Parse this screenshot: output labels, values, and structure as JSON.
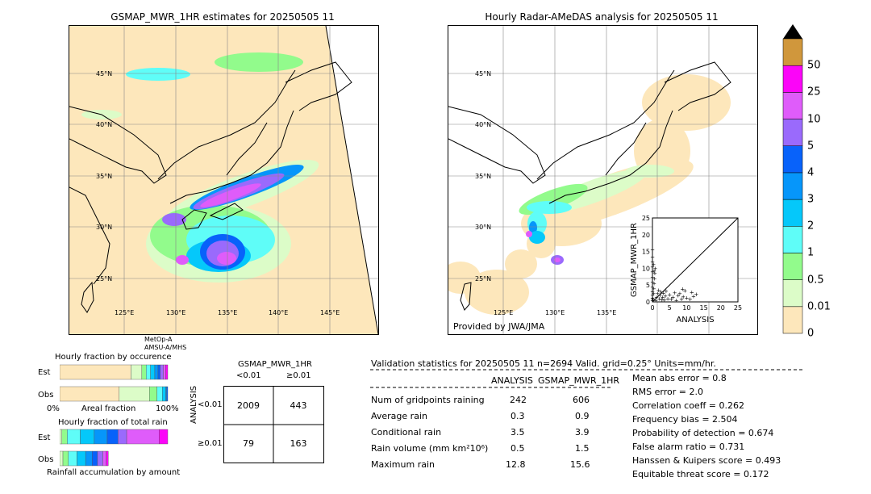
{
  "left_map": {
    "title": "GSMAP_MWR_1HR estimates for 20250505 11",
    "lat_labels": [
      "45°N",
      "40°N",
      "35°N",
      "30°N",
      "25°N"
    ],
    "lon_labels": [
      "125°E",
      "130°E",
      "135°E",
      "140°E",
      "145°E"
    ],
    "satellite_note": [
      "MetOp-A",
      "AMSU-A/MHS"
    ]
  },
  "right_map": {
    "title": "Hourly Radar-AMeDAS analysis for 20250505 11",
    "lat_labels": [
      "45°N",
      "40°N",
      "35°N",
      "30°N",
      "25°N"
    ],
    "lon_labels": [
      "125°E",
      "130°E",
      "135°E"
    ],
    "credit": "Provided by JWA/JMA"
  },
  "colorbar": {
    "levels": [
      "0",
      "0.01",
      "0.5",
      "1",
      "2",
      "3",
      "4",
      "5",
      "10",
      "25",
      "50"
    ],
    "colors": [
      "#fde7bb",
      "#dcfcc8",
      "#92fb8c",
      "#5ffdf8",
      "#05c8fa",
      "#0696fa",
      "#0862fa",
      "#9a6afc",
      "#df5cfa",
      "#fb05f8",
      "#d0973c"
    ],
    "extend_color": "#000000"
  },
  "chart_data": [
    {
      "type": "scatter",
      "title": "",
      "xlabel": "ANALYSIS",
      "ylabel": "GSMAP_MWR_1HR",
      "xlim": [
        0,
        25
      ],
      "ylim": [
        0,
        25
      ],
      "xticks": [
        "0",
        "5",
        "10",
        "15",
        "20",
        "25"
      ],
      "yticks": [
        "0",
        "5",
        "10",
        "15",
        "20",
        "25"
      ],
      "diagonal": true,
      "points": [
        [
          0.0,
          0.5
        ],
        [
          0.0,
          1.2
        ],
        [
          0.0,
          2.0
        ],
        [
          0.0,
          3.1
        ],
        [
          0.0,
          4.5
        ],
        [
          0.0,
          6.0
        ],
        [
          0.0,
          7.5
        ],
        [
          0.0,
          9.0
        ],
        [
          0.0,
          10.5
        ],
        [
          0.0,
          12.0
        ],
        [
          0.0,
          13.5
        ],
        [
          0.0,
          15.6
        ],
        [
          0.2,
          0.8
        ],
        [
          0.3,
          2.5
        ],
        [
          0.4,
          4.0
        ],
        [
          0.5,
          5.5
        ],
        [
          0.6,
          7.0
        ],
        [
          0.7,
          8.5
        ],
        [
          0.8,
          10.0
        ],
        [
          0.3,
          11.2
        ],
        [
          0.5,
          9.3
        ],
        [
          1.0,
          0.5
        ],
        [
          1.2,
          1.5
        ],
        [
          1.5,
          2.5
        ],
        [
          1.8,
          3.5
        ],
        [
          2.0,
          1.0
        ],
        [
          2.2,
          2.0
        ],
        [
          2.5,
          3.0
        ],
        [
          2.8,
          0.7
        ],
        [
          3.0,
          1.5
        ],
        [
          3.2,
          2.6
        ],
        [
          3.5,
          0.6
        ],
        [
          3.8,
          1.8
        ],
        [
          4.0,
          3.2
        ],
        [
          4.5,
          1.0
        ],
        [
          5.0,
          2.2
        ],
        [
          5.5,
          0.9
        ],
        [
          6.0,
          1.4
        ],
        [
          6.5,
          2.8
        ],
        [
          7.0,
          0.5
        ],
        [
          7.5,
          1.9
        ],
        [
          8.0,
          2.5
        ],
        [
          8.5,
          0.8
        ],
        [
          9.0,
          1.6
        ],
        [
          9.5,
          3.4
        ],
        [
          10.0,
          1.2
        ],
        [
          11.0,
          0.9
        ],
        [
          12.0,
          1.7
        ],
        [
          12.8,
          2.3
        ],
        [
          11.5,
          2.9
        ],
        [
          8.8,
          3.9
        ]
      ]
    },
    {
      "type": "bar",
      "title": "Hourly fraction by occurence",
      "categories": [
        "Est",
        "Obs"
      ],
      "xlabel": "Areal fraction",
      "xticks": [
        "0%",
        "100%"
      ],
      "series": [
        {
          "name": "Est",
          "segments": [
            {
              "color": "#fde7bb",
              "value": 0.66
            },
            {
              "color": "#dcfcc8",
              "value": 0.1
            },
            {
              "color": "#92fb8c",
              "value": 0.04
            },
            {
              "color": "#5ffdf8",
              "value": 0.04
            },
            {
              "color": "#05c8fa",
              "value": 0.04
            },
            {
              "color": "#0696fa",
              "value": 0.03
            },
            {
              "color": "#0862fa",
              "value": 0.02
            },
            {
              "color": "#9a6afc",
              "value": 0.03
            },
            {
              "color": "#df5cfa",
              "value": 0.02
            },
            {
              "color": "#fb05f8",
              "value": 0.02
            }
          ]
        },
        {
          "name": "Obs",
          "segments": [
            {
              "color": "#fde7bb",
              "value": 0.55
            },
            {
              "color": "#dcfcc8",
              "value": 0.28
            },
            {
              "color": "#92fb8c",
              "value": 0.07
            },
            {
              "color": "#5ffdf8",
              "value": 0.05
            },
            {
              "color": "#05c8fa",
              "value": 0.03
            },
            {
              "color": "#0696fa",
              "value": 0.01
            },
            {
              "color": "#0862fa",
              "value": 0.01
            }
          ]
        }
      ]
    },
    {
      "type": "bar",
      "title": "Hourly fraction of total rain",
      "categories": [
        "Est",
        "Obs"
      ],
      "xlabel": "Rainfall accumulation by amount",
      "series": [
        {
          "name": "Est",
          "segments": [
            {
              "color": "#dcfcc8",
              "value": 0.02
            },
            {
              "color": "#92fb8c",
              "value": 0.05
            },
            {
              "color": "#5ffdf8",
              "value": 0.12
            },
            {
              "color": "#05c8fa",
              "value": 0.13
            },
            {
              "color": "#0696fa",
              "value": 0.12
            },
            {
              "color": "#0862fa",
              "value": 0.1
            },
            {
              "color": "#9a6afc",
              "value": 0.08
            },
            {
              "color": "#df5cfa",
              "value": 0.3
            },
            {
              "color": "#fb05f8",
              "value": 0.08
            }
          ]
        },
        {
          "name": "Obs",
          "segments": [
            {
              "color": "#dcfcc8",
              "value": 0.03
            },
            {
              "color": "#92fb8c",
              "value": 0.05
            },
            {
              "color": "#5ffdf8",
              "value": 0.08
            },
            {
              "color": "#05c8fa",
              "value": 0.08
            },
            {
              "color": "#0696fa",
              "value": 0.06
            },
            {
              "color": "#0862fa",
              "value": 0.05
            },
            {
              "color": "#9a6afc",
              "value": 0.05
            },
            {
              "color": "#df5cfa",
              "value": 0.03
            },
            {
              "color": "#fb05f8",
              "value": 0.02
            }
          ]
        }
      ]
    },
    {
      "type": "table",
      "title": "GSMAP_MWR_1HR",
      "col_headers": [
        "<0.01",
        "≥0.01"
      ],
      "row_title": "ANALYSIS",
      "row_headers": [
        "<0.01",
        "≥0.01"
      ],
      "cells": [
        [
          "2009",
          "443"
        ],
        [
          "79",
          "163"
        ]
      ]
    }
  ],
  "validation": {
    "header": "Validation statistics for 20250505 11  n=2694 Valid. grid=0.25° Units=mm/hr.",
    "col_analysis": "ANALYSIS",
    "col_gsmap": "GSMAP_MWR_1HR",
    "rows": [
      {
        "label": "Num of gridpoints raining",
        "analysis": "242",
        "gsmap": "606"
      },
      {
        "label": "Average rain",
        "analysis": "0.3",
        "gsmap": "0.9"
      },
      {
        "label": "Conditional rain",
        "analysis": "3.5",
        "gsmap": "3.9"
      },
      {
        "label": "Rain volume (mm km²10⁶)",
        "analysis": "0.5",
        "gsmap": "1.5"
      },
      {
        "label": "Maximum rain",
        "analysis": "12.8",
        "gsmap": "15.6"
      }
    ],
    "scores": [
      "Mean abs error =    0.8",
      "RMS error =    2.0",
      "Correlation coeff =  0.262",
      "Frequency bias =  2.504",
      "Probability of detection =  0.674",
      "False alarm ratio =  0.731",
      "Hanssen & Kuipers score =  0.493",
      "Equitable threat score =  0.172"
    ]
  }
}
